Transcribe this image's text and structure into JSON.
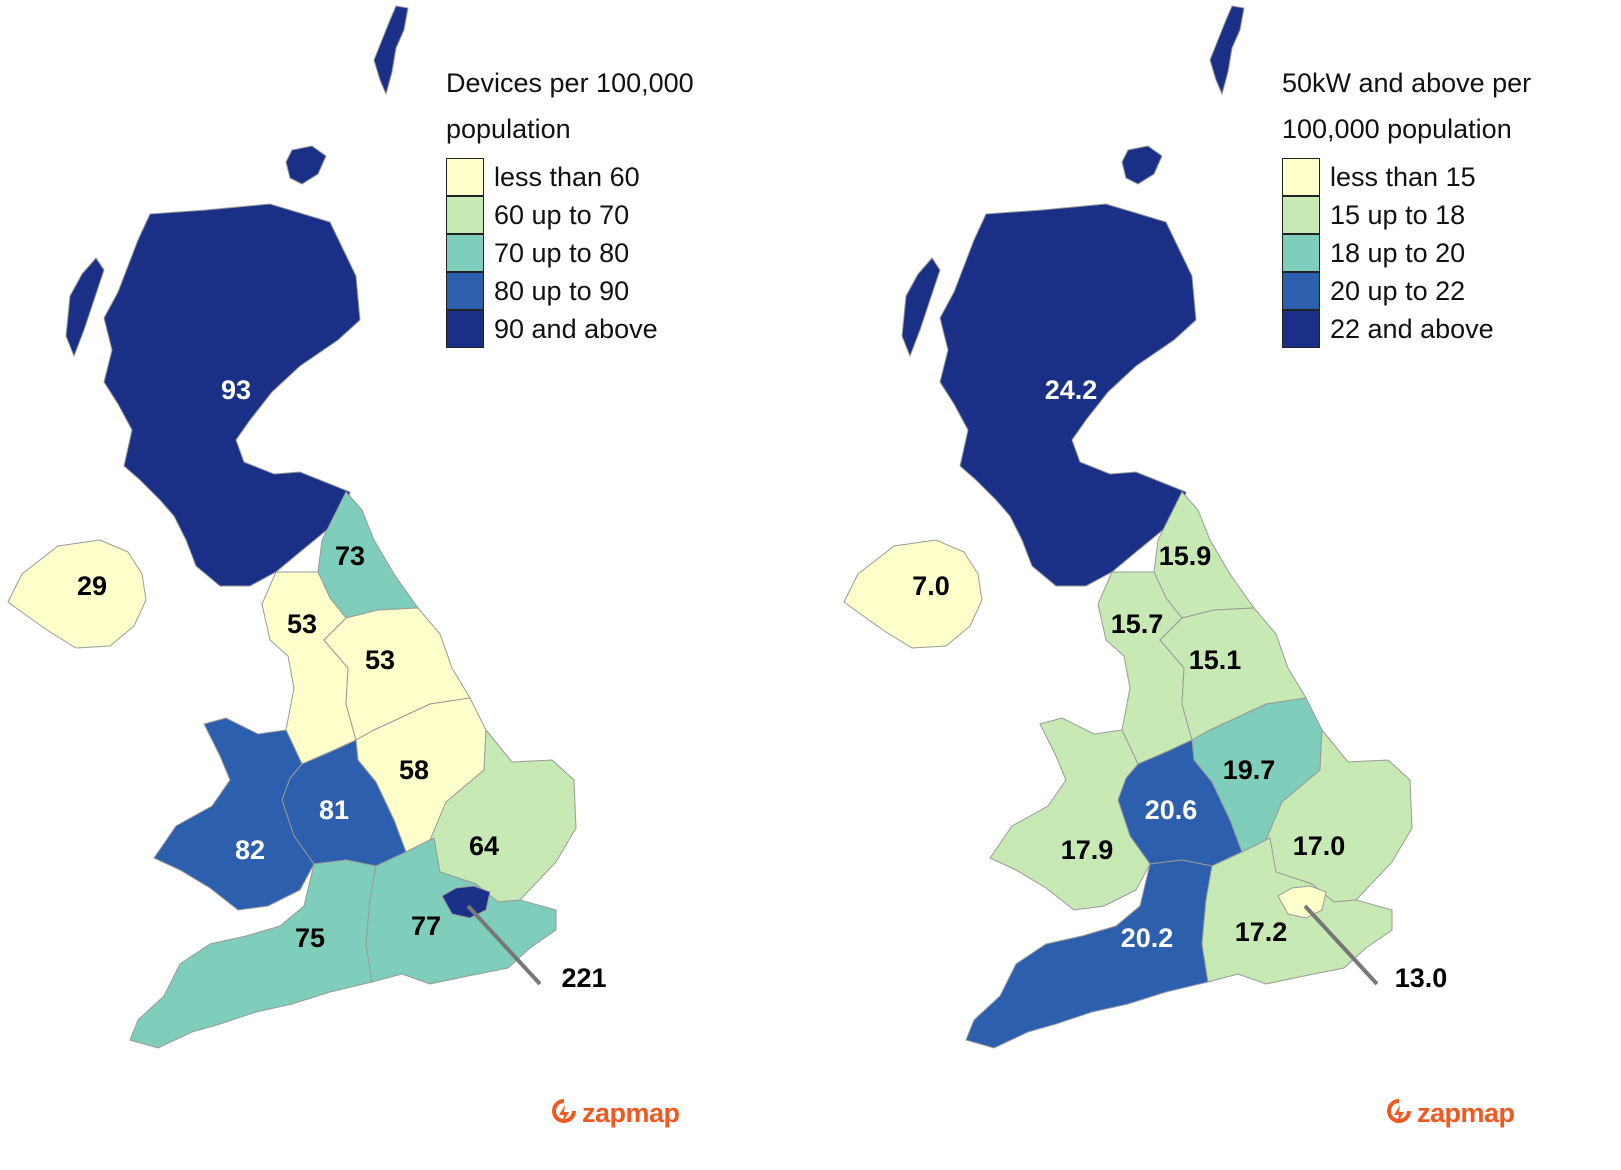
{
  "maps": [
    {
      "legend": {
        "title_line1": "Devices per 100,000",
        "title_line2": "population",
        "items": [
          {
            "label": "less than 60",
            "color": "#ffffcc"
          },
          {
            "label": "60 up to 70",
            "color": "#c7e9b4"
          },
          {
            "label": "70 up to 80",
            "color": "#7fcdbb"
          },
          {
            "label": "80 up to 90",
            "color": "#2c5fad"
          },
          {
            "label": "90 and above",
            "color": "#1a3087"
          }
        ]
      },
      "regions": {
        "scotland": {
          "value": "93",
          "bin": 4
        },
        "northern_ireland": {
          "value": "29",
          "bin": 0
        },
        "north_east": {
          "value": "73",
          "bin": 2
        },
        "north_west": {
          "value": "53",
          "bin": 0
        },
        "yorkshire": {
          "value": "53",
          "bin": 0
        },
        "east_midlands": {
          "value": "58",
          "bin": 0
        },
        "west_midlands": {
          "value": "81",
          "bin": 3
        },
        "wales": {
          "value": "82",
          "bin": 3
        },
        "east_of_england": {
          "value": "64",
          "bin": 1
        },
        "south_west": {
          "value": "75",
          "bin": 2
        },
        "south_east": {
          "value": "77",
          "bin": 2
        },
        "london": {
          "value": "221",
          "bin": 4
        }
      },
      "logo": "zapmap"
    },
    {
      "legend": {
        "title_line1": "50kW and above per",
        "title_line2": "100,000 population",
        "items": [
          {
            "label": "less than 15",
            "color": "#ffffcc"
          },
          {
            "label": "15 up to 18",
            "color": "#c7e9b4"
          },
          {
            "label": "18 up to 20",
            "color": "#7fcdbb"
          },
          {
            "label": "20 up to 22",
            "color": "#2c5fad"
          },
          {
            "label": "22 and above",
            "color": "#1a3087"
          }
        ]
      },
      "regions": {
        "scotland": {
          "value": "24.2",
          "bin": 4
        },
        "northern_ireland": {
          "value": "7.0",
          "bin": 0
        },
        "north_east": {
          "value": "15.9",
          "bin": 1
        },
        "north_west": {
          "value": "15.7",
          "bin": 1
        },
        "yorkshire": {
          "value": "15.1",
          "bin": 1
        },
        "east_midlands": {
          "value": "19.7",
          "bin": 2
        },
        "west_midlands": {
          "value": "20.6",
          "bin": 3
        },
        "wales": {
          "value": "17.9",
          "bin": 1
        },
        "east_of_england": {
          "value": "17.0",
          "bin": 1
        },
        "south_west": {
          "value": "20.2",
          "bin": 3
        },
        "south_east": {
          "value": "17.2",
          "bin": 1
        },
        "london": {
          "value": "13.0",
          "bin": 0
        }
      },
      "logo": "zapmap"
    }
  ]
}
